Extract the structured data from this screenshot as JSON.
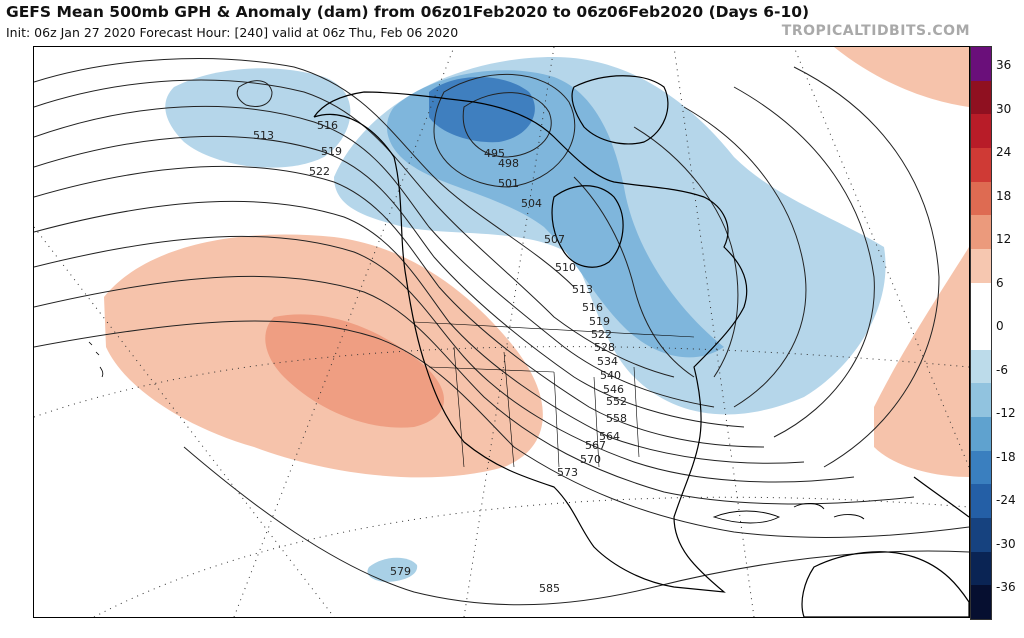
{
  "header": {
    "title": "GEFS Mean 500mb GPH & Anomaly (dam) from 06z01Feb2020 to 06z06Feb2020 (Days 6-10)",
    "subtitle": "Init: 06z Jan 27 2020   Forecast Hour: [240]   valid at 06z Thu, Feb 06 2020",
    "brand": "TROPICALTIDBITS.COM"
  },
  "colorbar": {
    "ticks": [
      "36",
      "30",
      "24",
      "18",
      "12",
      "6",
      "0",
      "-6",
      "-12",
      "-18",
      "-24",
      "-30",
      "-36"
    ],
    "colors": [
      "#6a0f7a",
      "#8f1020",
      "#b81c28",
      "#cf3a35",
      "#de6b52",
      "#eb9a7c",
      "#f6c7b0",
      "#ffffff",
      "#ffffff",
      "#bcdbea",
      "#91c3df",
      "#5fa2cf",
      "#3a7fbf",
      "#245fa6",
      "#16427f",
      "#0a2454",
      "#060f30"
    ]
  },
  "map": {
    "contour_labels": [
      "513",
      "516",
      "519",
      "522",
      "495",
      "498",
      "501",
      "504",
      "507",
      "510",
      "513",
      "516",
      "519",
      "522",
      "528",
      "534",
      "540",
      "546",
      "552",
      "558",
      "564",
      "567",
      "570",
      "573",
      "579",
      "585"
    ],
    "colors": {
      "warm": "#f4b59a",
      "warm_deep": "#ec9a7f",
      "cold": "#a9d0e6",
      "cold_deep": "#5e9fcf",
      "cold_core": "#3f7fbf",
      "land_outline": "#000000"
    }
  }
}
